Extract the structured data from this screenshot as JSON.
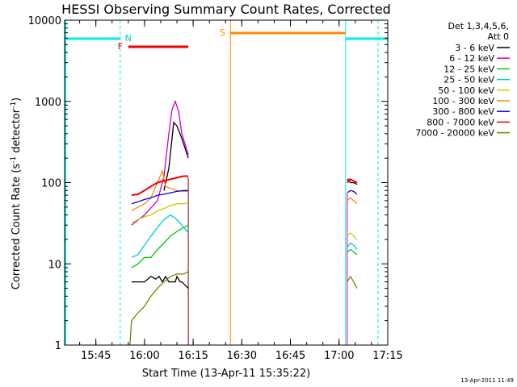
{
  "chart_data": {
    "type": "line",
    "title": "HESSI Observing Summary Count Rates, Corrected",
    "xlabel": "Start Time (13-Apr-11 15:35:22)",
    "ylabel": "Corrected Count Rate (s⁻¹ detector⁻¹)",
    "ylabel_parts": {
      "pre": "Corrected Count Rate (s",
      "sup1": "-1",
      "mid": " detector",
      "sup2": "-1",
      "post": ")"
    },
    "y_scale": "log",
    "ylim": [
      1,
      10000
    ],
    "xlim": [
      "15:35:22",
      "17:15:00"
    ],
    "x_ticks": [
      "15:45",
      "16:00",
      "16:15",
      "16:30",
      "16:45",
      "17:00",
      "17:15"
    ],
    "x_tick_minutes": [
      45,
      60,
      75,
      90,
      105,
      120,
      135
    ],
    "y_ticks": [
      "1",
      "10",
      "100",
      "1000",
      "10000"
    ],
    "y_tick_values": [
      1,
      10,
      100,
      1000,
      10000
    ],
    "legend_header": [
      "Det 1,3,4,5,6,",
      "Att 0"
    ],
    "legend_placement": "right",
    "series": [
      {
        "name": "3 - 6 keV",
        "color": "#000000",
        "segments": [
          {
            "x": [
              56.0,
              58.0,
              60.0,
              62.0,
              63.5,
              64.5,
              65.5,
              66.5,
              67.5,
              68.0,
              68.5,
              69.0,
              69.5,
              70.0,
              71.0,
              71.5,
              73.5
            ],
            "y": [
              6,
              6,
              6,
              7,
              6.5,
              7,
              6,
              7,
              6,
              6,
              6,
              6,
              6,
              7,
              6,
              6,
              5
            ]
          },
          {
            "x": [
              66.0,
              67.5,
              68.5,
              69.0,
              70.0,
              71.5,
              73.5
            ],
            "y": [
              80,
              150,
              350,
              550,
              500,
              350,
              200
            ]
          },
          {
            "x": [
              122.5,
              123.5,
              124.5,
              125.5
            ],
            "y": [
              110,
              100,
              100,
              95
            ]
          }
        ]
      },
      {
        "name": "6 - 12 keV",
        "color": "#cc00cc",
        "segments": [
          {
            "x": [
              56.0,
              60.0,
              64.0,
              66.0,
              67.5,
              68.5,
              69.5,
              70.5,
              71.5,
              73.5
            ],
            "y": [
              30,
              40,
              60,
              120,
              400,
              800,
              1000,
              750,
              400,
              220
            ]
          },
          {
            "x": [
              122.5,
              123.5,
              124.5,
              125.5
            ],
            "y": [
              110,
              110,
              105,
              100
            ]
          }
        ]
      },
      {
        "name": "12 - 25 keV",
        "color": "#00cc00",
        "segments": [
          {
            "x": [
              56.0,
              58.0,
              60.0,
              62.0,
              64.0,
              66.0,
              68.0,
              70.0,
              72.0,
              73.5
            ],
            "y": [
              9,
              10,
              12,
              12,
              15,
              18,
              22,
              25,
              28,
              30
            ]
          },
          {
            "x": [
              122.5,
              123.5,
              124.5,
              125.5
            ],
            "y": [
              14,
              15,
              14,
              13
            ]
          }
        ]
      },
      {
        "name": "25 - 50 keV",
        "color": "#00cccc",
        "segments": [
          {
            "x": [
              56.0,
              58.0,
              60.0,
              62.0,
              64.0,
              66.0,
              68.0,
              70.0,
              71.5,
              73.5
            ],
            "y": [
              12,
              13,
              17,
              22,
              28,
              35,
              40,
              35,
              30,
              24
            ]
          },
          {
            "x": [
              122.5,
              123.5,
              124.5,
              125.5
            ],
            "y": [
              16,
              18,
              17,
              15
            ]
          }
        ]
      },
      {
        "name": "50 - 100 keV",
        "color": "#cccc00",
        "segments": [
          {
            "x": [
              56.0,
              58.0,
              60.0,
              62.0,
              64.0,
              66.0,
              68.0,
              70.0,
              72.0,
              73.5
            ],
            "y": [
              32,
              35,
              38,
              40,
              45,
              48,
              52,
              55,
              55,
              56
            ]
          },
          {
            "x": [
              122.5,
              123.5,
              124.5,
              125.5
            ],
            "y": [
              22,
              24,
              22,
              20
            ]
          }
        ]
      },
      {
        "name": "100 - 300 keV",
        "color": "#ff8800",
        "segments": [
          {
            "x": [
              56.0,
              58.0,
              60.0,
              62.0,
              64.0,
              65.5,
              66.5,
              68.0,
              70.0,
              72.0,
              73.5
            ],
            "y": [
              45,
              50,
              55,
              65,
              100,
              140,
              90,
              85,
              80,
              78,
              78
            ]
          },
          {
            "x": [
              122.5,
              123.5,
              124.5,
              125.5
            ],
            "y": [
              60,
              65,
              60,
              55
            ]
          }
        ]
      },
      {
        "name": "300 - 800 keV",
        "color": "#0000ee",
        "segments": [
          {
            "x": [
              56.0,
              58.0,
              60.0,
              62.0,
              64.0,
              66.0,
              68.0,
              70.0,
              72.0,
              73.5
            ],
            "y": [
              55,
              58,
              62,
              65,
              70,
              72,
              75,
              78,
              80,
              80
            ]
          },
          {
            "x": [
              122.5,
              123.5,
              124.5,
              125.5
            ],
            "y": [
              75,
              80,
              78,
              72
            ]
          }
        ]
      },
      {
        "name": "800 - 7000 keV",
        "color": "#ee0000",
        "segments": [
          {
            "x": [
              56.0,
              58.0,
              60.0,
              62.0,
              64.0,
              66.0,
              68.0,
              70.0,
              72.0,
              73.5
            ],
            "y": [
              70,
              72,
              80,
              90,
              100,
              105,
              110,
              115,
              120,
              120
            ]
          },
          {
            "x": [
              122.5,
              123.5,
              124.5,
              125.5
            ],
            "y": [
              100,
              110,
              105,
              100
            ]
          }
        ]
      },
      {
        "name": "7000 - 20000 keV",
        "color": "#808000",
        "segments": [
          {
            "x": [
              55.5,
              56.0,
              58.0,
              60.0,
              62.0,
              64.0,
              66.0,
              68.0,
              70.0,
              72.0,
              73.5
            ],
            "y": [
              1,
              2,
              2.5,
              3,
              4,
              5,
              6,
              7,
              7.5,
              7.5,
              8
            ]
          },
          {
            "x": [
              122.5,
              123.5,
              124.5,
              125.5
            ],
            "y": [
              6,
              7,
              6,
              5
            ]
          }
        ]
      }
    ],
    "flags": [
      {
        "label": "N",
        "color": "#00cccc",
        "x": 52.5
      },
      {
        "label": "F",
        "color": "#ee0000",
        "x": 55.0
      },
      {
        "label": "S",
        "color": "#ff8800",
        "x": 86.5
      }
    ]
  },
  "timestamp": "13-Apr-2011 11:49"
}
